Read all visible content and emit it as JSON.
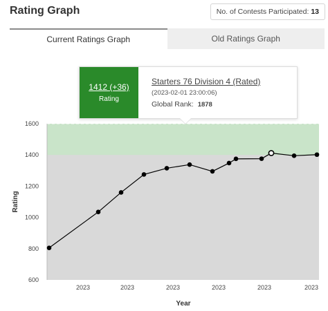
{
  "header": {
    "title": "Rating Graph",
    "contests_label": "No. of Contests Participated:",
    "contests_count": "13"
  },
  "tabs": [
    {
      "label": "Current Ratings Graph",
      "active": true
    },
    {
      "label": "Old Ratings Graph",
      "active": false
    }
  ],
  "tooltip": {
    "rating_value": "1412 (+36)",
    "rating_label": "Rating",
    "contest_name": "Starters 76 Division 4 (Rated)",
    "date": "(2023-02-01 23:00:06)",
    "global_rank_label": "Global Rank:",
    "global_rank": "1878",
    "accent_color": "#2a8a2a"
  },
  "chart_data": {
    "type": "line",
    "title": "",
    "xlabel": "Year",
    "ylabel": "Rating",
    "ylim": [
      600,
      1600
    ],
    "yticks": [
      600,
      800,
      1000,
      1200,
      1400,
      1600
    ],
    "xtick_labels": [
      "2023",
      "2023",
      "2023",
      "2023",
      "2023",
      "2023",
      "2023"
    ],
    "grid": false,
    "highlight_band": {
      "from": 1400,
      "to": 1600,
      "color": "#c9e4c9"
    },
    "plot_background": "#d9d9d9",
    "series": [
      {
        "values": [
          805,
          1035,
          1160,
          1275,
          1315,
          1338,
          1295,
          1348,
          1375,
          1376,
          1412,
          1395,
          1402
        ],
        "highlighted_index": 10,
        "color": "#000000"
      }
    ]
  }
}
